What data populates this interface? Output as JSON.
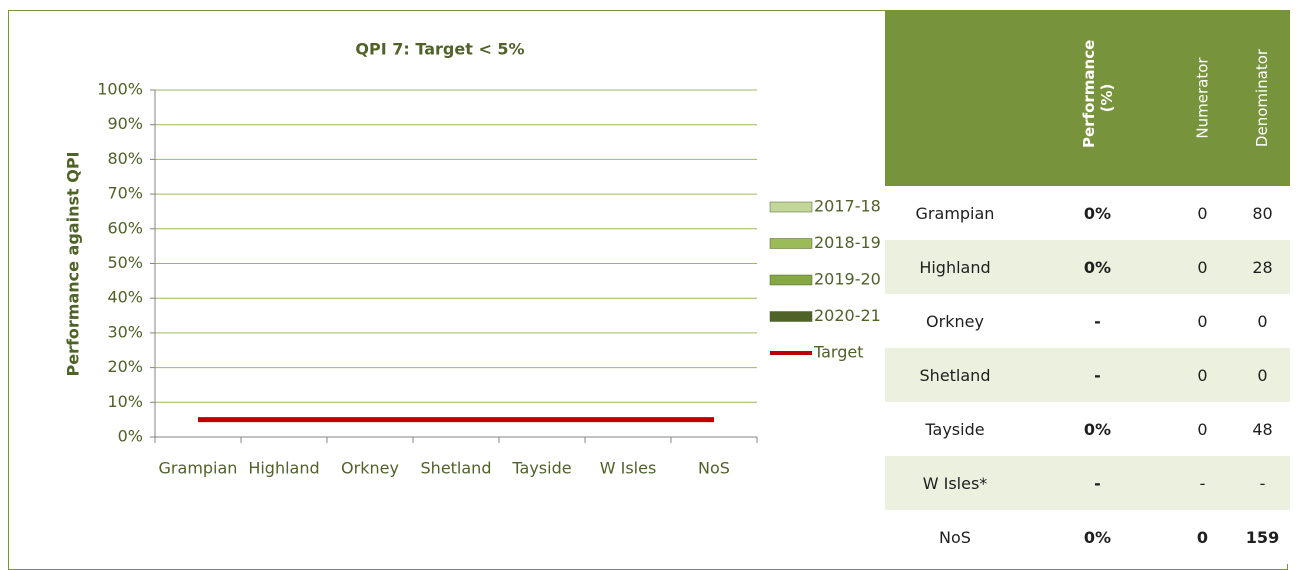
{
  "chart_data": {
    "type": "bar",
    "title": "QPI 7: Target < 5%",
    "y_label": "Performance against QPI",
    "categories": [
      "Grampian",
      "Highland",
      "Orkney",
      "Shetland",
      "Tayside",
      "W Isles",
      "NoS"
    ],
    "series": [
      {
        "name": "2017-18",
        "color": "#c4d79b",
        "values": [
          0,
          0,
          0,
          0,
          0,
          0,
          0
        ]
      },
      {
        "name": "2018-19",
        "color": "#9bbb59",
        "values": [
          0,
          0,
          0,
          0,
          0,
          0,
          0
        ]
      },
      {
        "name": "2019-20",
        "color": "#86a844",
        "values": [
          0,
          0,
          0,
          0,
          0,
          0,
          0
        ]
      },
      {
        "name": "2020-21",
        "color": "#4f6228",
        "values": [
          0,
          0,
          0,
          0,
          0,
          0,
          0
        ]
      },
      {
        "name": "Target",
        "type": "line",
        "color": "#c00000",
        "values": [
          5,
          5,
          5,
          5,
          5,
          5,
          5
        ]
      }
    ],
    "ylim": [
      0,
      100
    ],
    "yticks": [
      {
        "value": 0,
        "label": "0%"
      },
      {
        "value": 10,
        "label": "10%"
      },
      {
        "value": 20,
        "label": "20%"
      },
      {
        "value": 30,
        "label": "30%"
      },
      {
        "value": 40,
        "label": "40%"
      },
      {
        "value": 50,
        "label": "50%"
      },
      {
        "value": 60,
        "label": "60%"
      },
      {
        "value": 70,
        "label": "70%"
      },
      {
        "value": 80,
        "label": "80%"
      },
      {
        "value": 90,
        "label": "90%"
      },
      {
        "value": 100,
        "label": "100%"
      }
    ],
    "grid": true,
    "legend": "right"
  },
  "table": {
    "header": [
      "Performance (%)",
      "Numerator",
      "Denominator"
    ],
    "rows": [
      [
        "Grampian",
        "0%",
        "0",
        "80"
      ],
      [
        "Highland",
        "0%",
        "0",
        "28"
      ],
      [
        "Orkney",
        "-",
        "0",
        "0"
      ],
      [
        "Shetland",
        "-",
        "0",
        "0"
      ],
      [
        "Tayside",
        "0%",
        "0",
        "48"
      ],
      [
        "W Isles*",
        "-",
        "-",
        "-"
      ],
      [
        "NoS",
        "0%",
        "0",
        "159"
      ]
    ]
  }
}
